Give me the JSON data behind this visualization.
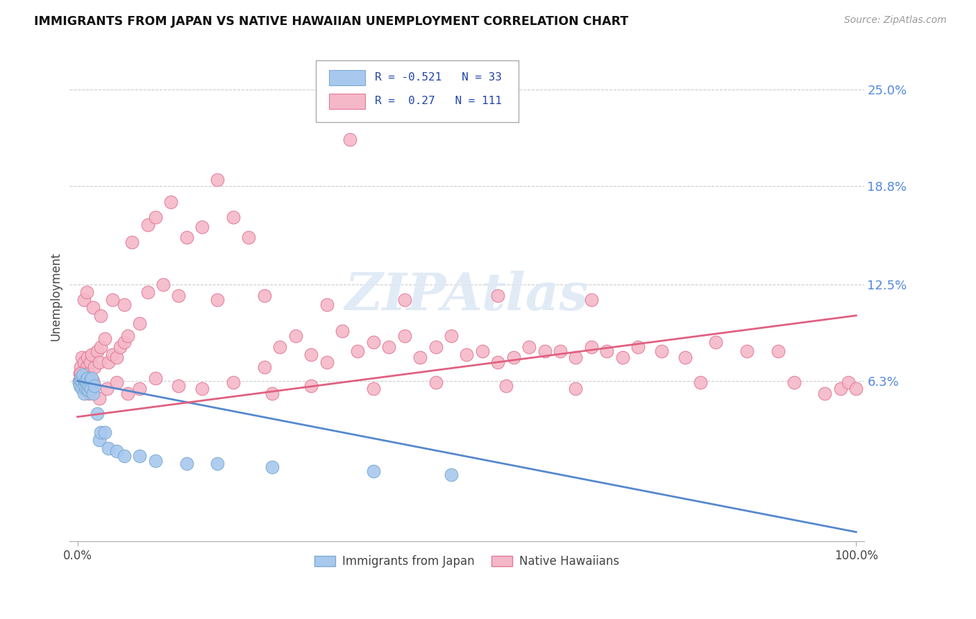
{
  "title": "IMMIGRANTS FROM JAPAN VS NATIVE HAWAIIAN UNEMPLOYMENT CORRELATION CHART",
  "source": "Source: ZipAtlas.com",
  "ylabel": "Unemployment",
  "ytick_vals": [
    0.063,
    0.125,
    0.188,
    0.25
  ],
  "ytick_labels": [
    "6.3%",
    "12.5%",
    "18.8%",
    "25.0%"
  ],
  "xmin": -0.01,
  "xmax": 1.01,
  "ymin": -0.04,
  "ymax": 0.275,
  "blue_color": "#A8C8EE",
  "pink_color": "#F5B8C8",
  "blue_edge": "#7AAAD0",
  "pink_edge": "#E07898",
  "trend_blue": "#5588CC",
  "trend_pink": "#E06080",
  "blue_R": -0.521,
  "blue_N": 33,
  "pink_R": 0.27,
  "pink_N": 111,
  "blue_x": [
    0.002,
    0.003,
    0.004,
    0.005,
    0.006,
    0.007,
    0.008,
    0.009,
    0.01,
    0.011,
    0.012,
    0.013,
    0.014,
    0.015,
    0.016,
    0.017,
    0.018,
    0.02,
    0.022,
    0.025,
    0.028,
    0.03,
    0.035,
    0.04,
    0.05,
    0.06,
    0.08,
    0.1,
    0.14,
    0.18,
    0.25,
    0.38,
    0.48
  ],
  "blue_y": [
    0.062,
    0.06,
    0.065,
    0.063,
    0.058,
    0.067,
    0.055,
    0.06,
    0.063,
    0.058,
    0.062,
    0.065,
    0.057,
    0.06,
    0.063,
    0.058,
    0.065,
    0.055,
    0.06,
    0.042,
    0.025,
    0.03,
    0.03,
    0.02,
    0.018,
    0.015,
    0.015,
    0.012,
    0.01,
    0.01,
    0.008,
    0.005,
    0.003
  ],
  "pink_x": [
    0.002,
    0.003,
    0.004,
    0.005,
    0.006,
    0.007,
    0.008,
    0.009,
    0.01,
    0.011,
    0.012,
    0.013,
    0.014,
    0.015,
    0.016,
    0.017,
    0.018,
    0.02,
    0.022,
    0.025,
    0.028,
    0.03,
    0.035,
    0.04,
    0.045,
    0.05,
    0.055,
    0.06,
    0.065,
    0.07,
    0.08,
    0.09,
    0.1,
    0.11,
    0.12,
    0.14,
    0.16,
    0.18,
    0.2,
    0.22,
    0.24,
    0.26,
    0.28,
    0.3,
    0.32,
    0.34,
    0.36,
    0.38,
    0.4,
    0.42,
    0.44,
    0.46,
    0.48,
    0.5,
    0.52,
    0.54,
    0.56,
    0.58,
    0.6,
    0.62,
    0.64,
    0.66,
    0.68,
    0.7,
    0.72,
    0.75,
    0.78,
    0.82,
    0.86,
    0.9,
    0.004,
    0.006,
    0.01,
    0.015,
    0.02,
    0.028,
    0.038,
    0.05,
    0.065,
    0.08,
    0.1,
    0.13,
    0.16,
    0.2,
    0.25,
    0.3,
    0.38,
    0.46,
    0.55,
    0.64,
    0.008,
    0.012,
    0.02,
    0.03,
    0.045,
    0.06,
    0.09,
    0.13,
    0.18,
    0.24,
    0.32,
    0.42,
    0.54,
    0.66,
    0.8,
    0.92,
    0.96,
    0.98,
    0.99,
    1.0,
    0.35
  ],
  "pink_y": [
    0.063,
    0.068,
    0.072,
    0.065,
    0.078,
    0.06,
    0.075,
    0.068,
    0.063,
    0.07,
    0.072,
    0.078,
    0.065,
    0.068,
    0.075,
    0.06,
    0.08,
    0.063,
    0.072,
    0.082,
    0.075,
    0.085,
    0.09,
    0.075,
    0.08,
    0.078,
    0.085,
    0.088,
    0.092,
    0.152,
    0.1,
    0.163,
    0.168,
    0.125,
    0.178,
    0.155,
    0.162,
    0.192,
    0.168,
    0.155,
    0.072,
    0.085,
    0.092,
    0.08,
    0.075,
    0.095,
    0.082,
    0.088,
    0.085,
    0.092,
    0.078,
    0.085,
    0.092,
    0.08,
    0.082,
    0.075,
    0.078,
    0.085,
    0.082,
    0.082,
    0.078,
    0.085,
    0.082,
    0.078,
    0.085,
    0.082,
    0.078,
    0.088,
    0.082,
    0.082,
    0.068,
    0.062,
    0.058,
    0.055,
    0.06,
    0.052,
    0.058,
    0.062,
    0.055,
    0.058,
    0.065,
    0.06,
    0.058,
    0.062,
    0.055,
    0.06,
    0.058,
    0.062,
    0.06,
    0.058,
    0.115,
    0.12,
    0.11,
    0.105,
    0.115,
    0.112,
    0.12,
    0.118,
    0.115,
    0.118,
    0.112,
    0.115,
    0.118,
    0.115,
    0.062,
    0.062,
    0.055,
    0.058,
    0.062,
    0.058,
    0.218
  ]
}
